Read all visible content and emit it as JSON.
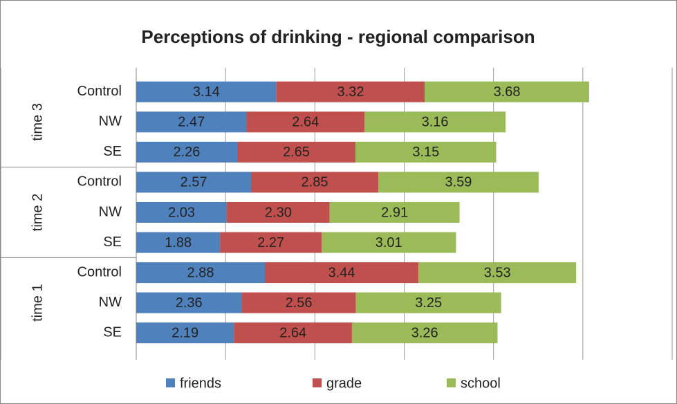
{
  "chart_data": {
    "type": "stacked-barh",
    "title": "Perceptions of drinking - regional comparison",
    "groups": [
      "time 3",
      "time 2",
      "time 1"
    ],
    "categories": [
      "Control",
      "NW",
      "SE",
      "Control",
      "NW",
      "SE",
      "Control",
      "NW",
      "SE"
    ],
    "series": [
      {
        "name": "friends",
        "color": "#4f81bd",
        "values": [
          3.14,
          2.47,
          2.26,
          2.57,
          2.03,
          1.88,
          2.88,
          2.36,
          2.19
        ],
        "value_labels": [
          "3.14",
          "2.47",
          "2.26",
          "2.57",
          "2.03",
          "1.88",
          "2.88",
          "2.36",
          "2.19"
        ]
      },
      {
        "name": "grade",
        "color": "#c0504d",
        "values": [
          3.32,
          2.64,
          2.65,
          2.85,
          2.3,
          2.27,
          3.44,
          2.56,
          2.64
        ],
        "value_labels": [
          "3.32",
          "2.64",
          "2.65",
          "2.85",
          "2.30",
          "2.27",
          "3.44",
          "2.56",
          "2.64"
        ]
      },
      {
        "name": "school",
        "color": "#9bbb59",
        "values": [
          3.68,
          3.16,
          3.15,
          3.59,
          2.91,
          3.01,
          3.53,
          3.25,
          3.26
        ],
        "value_labels": [
          "3.68",
          "3.16",
          "3.15",
          "3.59",
          "2.91",
          "3.01",
          "3.53",
          "3.25",
          "3.26"
        ]
      }
    ],
    "xlim": [
      0,
      12
    ],
    "xticks": [
      0,
      2,
      4,
      6,
      8,
      10,
      12
    ],
    "grid": true,
    "legend": "bottom"
  }
}
